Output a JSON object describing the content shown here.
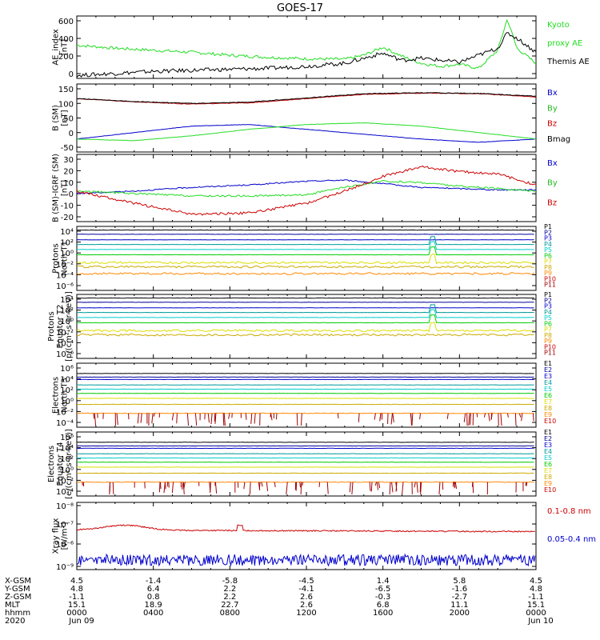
{
  "title": "GOES-17",
  "colors": {
    "black": "#000000",
    "red": "#cc0000",
    "green": "#22dd22",
    "blue": "#0000cc",
    "darkred": "#a00000",
    "orange": "#ff8800",
    "yellow": "#dddd00",
    "gold": "#ccaa00",
    "cyan": "#00cccc",
    "teal": "#009999",
    "lime": "#00cc00",
    "purple": "#660099",
    "indigo": "#000099"
  },
  "panels": [
    {
      "id": "ae",
      "ylabel_lines": [
        "AE_index",
        "[nT]"
      ],
      "ticks": [
        "600",
        "400",
        "200",
        "0"
      ],
      "ylim": [
        0,
        620
      ],
      "legend": [
        {
          "text": "Kyoto",
          "color": "#22dd22"
        },
        {
          "text": "proxy AE",
          "color": "#22dd22"
        },
        {
          "text": "Themis AE",
          "color": "#000000"
        }
      ]
    },
    {
      "id": "bsm",
      "ylabel_lines": [
        "B (SM)",
        "[nT]"
      ],
      "ticks": [
        "150",
        "100",
        "50",
        "0",
        "-50"
      ],
      "ylim": [
        -60,
        150
      ],
      "legend": [
        {
          "text": "Bx",
          "color": "#0000cc"
        },
        {
          "text": "By",
          "color": "#22bb22"
        },
        {
          "text": "Bz",
          "color": "#cc0000"
        },
        {
          "text": "Bmag",
          "color": "#000000"
        }
      ]
    },
    {
      "id": "bigrf",
      "ylabel_lines": [
        "B (SM)-IGRF (SM)",
        "[nT]"
      ],
      "ticks": [
        "30",
        "20",
        "10",
        "0",
        "-10",
        "-20"
      ],
      "ylim": [
        -25,
        30
      ],
      "legend": [
        {
          "text": "Bx",
          "color": "#0000cc"
        },
        {
          "text": "By",
          "color": "#22bb22"
        },
        {
          "text": "Bz",
          "color": "#cc0000"
        }
      ]
    },
    {
      "id": "pt1",
      "ylabel_lines": [
        "Protons",
        "North T1"
      ],
      "ticks": [
        "10⁴",
        "10²",
        "10⁰",
        "10⁻²",
        "10⁻⁴",
        "10⁻⁶"
      ],
      "legend_labels": [
        "P1",
        "P2",
        "P3",
        "P4",
        "P5",
        "P6",
        "P7",
        "P8",
        "P9",
        "P10",
        "P11"
      ]
    },
    {
      "id": "pt2",
      "ylabel_lines": [
        "Protons",
        "Equator T2",
        "[p/(cm²-s-sr-keV)]"
      ],
      "ticks": [
        "10⁴",
        "10²",
        "10⁰",
        "10⁻²",
        "10⁻⁴",
        "10⁻⁶"
      ],
      "legend_labels": [
        "P1",
        "P2",
        "P3",
        "P4",
        "P5",
        "P6",
        "P7",
        "P8",
        "P9",
        "P10",
        "P11"
      ]
    },
    {
      "id": "et3",
      "ylabel_lines": [
        "Electrons",
        "North T3"
      ],
      "ticks": [
        "10⁶",
        "10⁴",
        "10²",
        "10⁰",
        "10⁻²",
        "10⁻⁴"
      ],
      "legend_labels": [
        "E1",
        "E2",
        "E3",
        "E4",
        "E5",
        "E6",
        "E7",
        "E8",
        "E9",
        "E10"
      ]
    },
    {
      "id": "et4",
      "ylabel_lines": [
        "Electrons",
        "Equator T4",
        "[e/(cm²-s-sr-keV)]"
      ],
      "ticks": [
        "10⁶",
        "10⁴",
        "10²",
        "10⁰",
        "10⁻²",
        "10⁻⁴"
      ],
      "legend_labels": [
        "E1",
        "E2",
        "E3",
        "E4",
        "E5",
        "E6",
        "E7",
        "E8",
        "E9",
        "E10"
      ]
    },
    {
      "id": "xray",
      "ylabel_lines": [
        "Xray flux",
        "[W/m²]"
      ],
      "ticks": [
        "10⁻⁸",
        "10⁻⁷",
        "10⁻⁶",
        "10⁻⁹"
      ],
      "legend": [
        {
          "text": "0.1-0.8 nm",
          "color": "#cc0000"
        },
        {
          "text": "0.05-0.4 nm",
          "color": "#0000cc"
        }
      ]
    }
  ],
  "ephemeris": {
    "row_labels": [
      "X-GSM",
      "Y-GSM",
      "Z-GSM",
      "MLT",
      "hhmm",
      "2020"
    ],
    "columns": [
      [
        "4.5",
        "4.8",
        "-1.1",
        "15.1",
        "0000",
        "Jun 09"
      ],
      [
        "-1.4",
        "6.4",
        "0.8",
        "18.9",
        "0400",
        ""
      ],
      [
        "-5.8",
        "2.2",
        "2.2",
        "22.7",
        "0800",
        ""
      ],
      [
        "-4.5",
        "-4.1",
        "2.6",
        "2.6",
        "1200",
        ""
      ],
      [
        "1.4",
        "-6.5",
        "-0.3",
        "6.8",
        "1600",
        ""
      ],
      [
        "5.8",
        "-1.6",
        "-2.7",
        "11.1",
        "2000",
        ""
      ],
      [
        "4.5",
        "4.8",
        "-1.1",
        "15.1",
        "0000",
        "Jun 10"
      ]
    ]
  },
  "chart_data": [
    {
      "type": "line",
      "ylabel": "AE_index [nT]",
      "x_hours": [
        0,
        2,
        4,
        6,
        8,
        10,
        12,
        14,
        15,
        16,
        17,
        18,
        19,
        20,
        21,
        22,
        22.5,
        23,
        24
      ],
      "series": [
        {
          "name": "Kyoto proxy AE",
          "values": [
            330,
            300,
            280,
            260,
            230,
            210,
            195,
            190,
            230,
            310,
            220,
            150,
            120,
            140,
            100,
            280,
            590,
            300,
            150
          ]
        },
        {
          "name": "Themis AE",
          "values": [
            30,
            50,
            70,
            80,
            90,
            100,
            120,
            150,
            200,
            250,
            180,
            200,
            180,
            160,
            230,
            300,
            450,
            400,
            260
          ]
        }
      ],
      "ylim": [
        0,
        620
      ]
    },
    {
      "type": "line",
      "ylabel": "B (SM) [nT]",
      "x_hours": [
        0,
        3,
        6,
        9,
        12,
        15,
        18,
        21,
        24
      ],
      "series": [
        {
          "name": "Bx",
          "values": [
            -20,
            0,
            20,
            25,
            10,
            -5,
            -20,
            -30,
            -20
          ]
        },
        {
          "name": "By",
          "values": [
            -20,
            -25,
            -10,
            10,
            25,
            30,
            20,
            0,
            -20
          ]
        },
        {
          "name": "Bz",
          "values": [
            105,
            95,
            88,
            92,
            105,
            118,
            122,
            120,
            110
          ]
        },
        {
          "name": "Bmag",
          "values": [
            105,
            96,
            90,
            94,
            107,
            120,
            123,
            121,
            112
          ]
        }
      ],
      "ylim": [
        -60,
        150
      ]
    },
    {
      "type": "line",
      "ylabel": "B (SM)-IGRF (SM) [nT]",
      "x_hours": [
        0,
        3,
        6,
        9,
        12,
        14,
        16,
        18,
        20,
        22,
        24
      ],
      "series": [
        {
          "name": "Bx",
          "values": [
            -2,
            0,
            3,
            5,
            8,
            9,
            6,
            3,
            2,
            1,
            1
          ]
        },
        {
          "name": "By",
          "values": [
            0,
            -2,
            -4,
            -4,
            -3,
            3,
            8,
            7,
            4,
            2,
            0
          ]
        },
        {
          "name": "Bz",
          "values": [
            0,
            -10,
            -19,
            -18,
            -10,
            0,
            12,
            20,
            16,
            14,
            5
          ]
        }
      ],
      "ylim": [
        -25,
        30
      ]
    },
    {
      "type": "line",
      "ylabel": "Protons North T1",
      "series": [
        {
          "name": "P1",
          "values": [
            5000
          ]
        },
        {
          "name": "P2",
          "values": [
            1000
          ]
        },
        {
          "name": "P3",
          "values": [
            120
          ]
        },
        {
          "name": "P4",
          "values": [
            20
          ]
        },
        {
          "name": "P5",
          "values": [
            3
          ]
        },
        {
          "name": "P6",
          "values": [
            0.4
          ]
        },
        {
          "name": "P7",
          "values": [
            0.02
          ]
        },
        {
          "name": "P8",
          "values": [
            0.004
          ]
        },
        {
          "name": "P9",
          "values": [
            0.0003
          ]
        }
      ]
    },
    {
      "type": "line",
      "ylabel": "Protons Equator T2 [p/(cm²-s-sr-keV)]",
      "series": [
        {
          "name": "P1",
          "values": [
            5000
          ]
        },
        {
          "name": "P2",
          "values": [
            1000
          ]
        },
        {
          "name": "P3",
          "values": [
            120
          ]
        },
        {
          "name": "P4",
          "values": [
            20
          ]
        },
        {
          "name": "P5",
          "values": [
            3
          ]
        },
        {
          "name": "P6",
          "values": [
            0.4
          ]
        },
        {
          "name": "P7",
          "values": [
            0.02
          ]
        },
        {
          "name": "P8",
          "values": [
            0.004
          ]
        }
      ]
    },
    {
      "type": "line",
      "ylabel": "Electrons North T3",
      "series": [
        {
          "name": "E1",
          "values": [
            40000
          ]
        },
        {
          "name": "E2",
          "values": [
            10000
          ]
        },
        {
          "name": "E3",
          "values": [
            4000
          ]
        },
        {
          "name": "E4",
          "values": [
            500
          ]
        },
        {
          "name": "E5",
          "values": [
            100
          ]
        },
        {
          "name": "E6",
          "values": [
            20
          ]
        },
        {
          "name": "E7",
          "values": [
            3
          ]
        },
        {
          "name": "E8",
          "values": [
            0.3
          ]
        },
        {
          "name": "E9",
          "values": [
            0.01
          ]
        }
      ]
    },
    {
      "type": "line",
      "ylabel": "Electrons Equator T4 [e/(cm²-s-sr-keV)]",
      "series": [
        {
          "name": "E1",
          "values": [
            40000
          ]
        },
        {
          "name": "E2",
          "values": [
            10000
          ]
        },
        {
          "name": "E3",
          "values": [
            4000
          ]
        },
        {
          "name": "E4",
          "values": [
            500
          ]
        },
        {
          "name": "E5",
          "values": [
            100
          ]
        },
        {
          "name": "E6",
          "values": [
            20
          ]
        },
        {
          "name": "E7",
          "values": [
            3
          ]
        },
        {
          "name": "E8",
          "values": [
            0.3
          ]
        },
        {
          "name": "E9",
          "values": [
            0.01
          ]
        }
      ]
    },
    {
      "type": "line",
      "ylabel": "Xray flux [W/m²]",
      "series": [
        {
          "name": "0.1-0.8 nm",
          "values": [
            1e-07,
            1.2e-07,
            8e-08,
            6e-08,
            5e-08,
            4e-08,
            3.5e-08,
            3e-08,
            3e-08
          ]
        },
        {
          "name": "0.05-0.4 nm",
          "values": [
            2e-09,
            2e-09,
            2e-09,
            2e-09,
            2e-09,
            2e-09,
            2e-09,
            2e-09,
            2e-09
          ]
        }
      ]
    }
  ]
}
